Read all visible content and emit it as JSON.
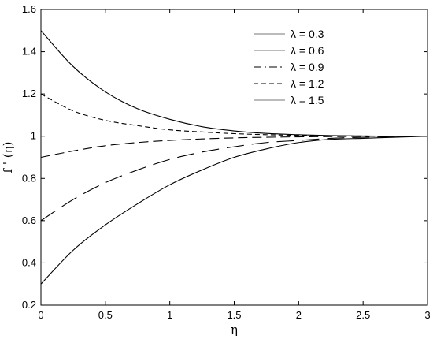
{
  "chart_data": {
    "type": "line",
    "xlabel": "η",
    "ylabel": "f ' (η)",
    "xlim": [
      0,
      3
    ],
    "ylim": [
      0.2,
      1.6
    ],
    "xticks": [
      "0",
      "0.5",
      "1",
      "1.5",
      "2",
      "2.5",
      "3"
    ],
    "yticks": [
      "0.2",
      "0.4",
      "0.6",
      "0.8",
      "1",
      "1.2",
      "1.4",
      "1.6"
    ],
    "grid": false,
    "legend_position": "top-right",
    "series": [
      {
        "name": "λ = 0.3",
        "style": "solid",
        "color": "#000000",
        "x": [
          0,
          0.25,
          0.5,
          0.75,
          1.0,
          1.25,
          1.5,
          1.75,
          2.0,
          2.25,
          2.5,
          2.75,
          3.0
        ],
        "y": [
          0.3,
          0.46,
          0.58,
          0.68,
          0.77,
          0.84,
          0.9,
          0.94,
          0.97,
          0.985,
          0.99,
          0.995,
          1.0
        ]
      },
      {
        "name": "λ = 0.6",
        "style": "longdash",
        "color": "#000000",
        "x": [
          0,
          0.25,
          0.5,
          0.75,
          1.0,
          1.25,
          1.5,
          1.75,
          2.0,
          2.25,
          2.5,
          2.75,
          3.0
        ],
        "y": [
          0.6,
          0.7,
          0.78,
          0.84,
          0.89,
          0.925,
          0.95,
          0.97,
          0.98,
          0.99,
          0.995,
          0.998,
          1.0
        ]
      },
      {
        "name": "λ = 0.9",
        "style": "dash",
        "color": "#000000",
        "x": [
          0,
          0.25,
          0.5,
          0.75,
          1.0,
          1.25,
          1.5,
          1.75,
          2.0,
          2.25,
          2.5,
          2.75,
          3.0
        ],
        "y": [
          0.9,
          0.93,
          0.955,
          0.97,
          0.98,
          0.987,
          0.992,
          0.995,
          0.997,
          0.998,
          0.999,
          1.0,
          1.0
        ]
      },
      {
        "name": "λ = 1.2",
        "style": "shortdash",
        "color": "#000000",
        "x": [
          0,
          0.25,
          0.5,
          0.75,
          1.0,
          1.25,
          1.5,
          1.75,
          2.0,
          2.25,
          2.5,
          2.75,
          3.0
        ],
        "y": [
          1.2,
          1.12,
          1.075,
          1.05,
          1.03,
          1.02,
          1.012,
          1.007,
          1.004,
          1.002,
          1.001,
          1.0,
          1.0
        ]
      },
      {
        "name": "λ = 1.5",
        "style": "solid",
        "color": "#000000",
        "x": [
          0,
          0.25,
          0.5,
          0.75,
          1.0,
          1.25,
          1.5,
          1.75,
          2.0,
          2.25,
          2.5,
          2.75,
          3.0
        ],
        "y": [
          1.5,
          1.33,
          1.21,
          1.13,
          1.08,
          1.045,
          1.025,
          1.013,
          1.007,
          1.003,
          1.001,
          1.0,
          1.0
        ]
      }
    ],
    "legend_line_styles": [
      "solid-thin-gray",
      "solid-thin-gray",
      "dashdot",
      "shortdash",
      "solid-thin-gray"
    ]
  }
}
